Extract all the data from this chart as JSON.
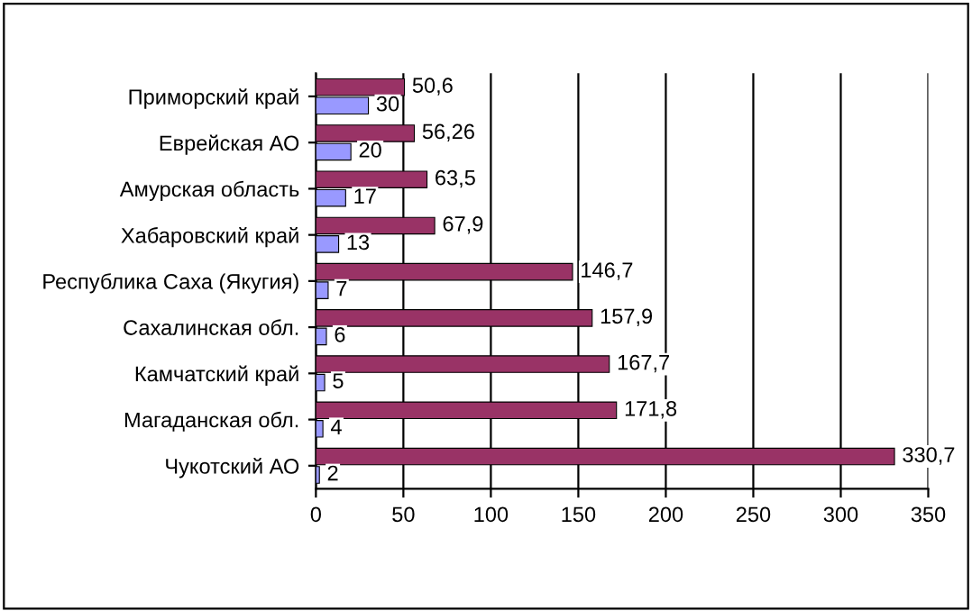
{
  "chart_data": {
    "type": "bar",
    "orientation": "horizontal",
    "categories": [
      "Приморский край",
      "Еврейская АО",
      "Амурская область",
      "Хабаровский край",
      "Республика Саха (Якугия)",
      "Сахалинская обл.",
      "Камчатский край",
      "Магаданская обл.",
      "Чукотский АО"
    ],
    "series": [
      {
        "color": "#993366",
        "values": [
          50.6,
          56.26,
          63.5,
          67.9,
          146.7,
          157.9,
          167.7,
          171.8,
          330.7
        ],
        "value_labels": [
          "50,6",
          "56,26",
          "63,5",
          "67,9",
          "146,7",
          "157,9",
          "167,7",
          "171,8",
          "330,7"
        ]
      },
      {
        "color": "#9999ff",
        "values": [
          30,
          20,
          17,
          13,
          7,
          6,
          5,
          4,
          2
        ],
        "value_labels": [
          "30",
          "20",
          "17",
          "13",
          "7",
          "6",
          "5",
          "4",
          "2"
        ]
      }
    ],
    "xlim": [
      0,
      350
    ],
    "xticks": [
      0,
      50,
      100,
      150,
      200,
      250,
      300,
      350
    ],
    "grid": "x",
    "legend": false
  }
}
